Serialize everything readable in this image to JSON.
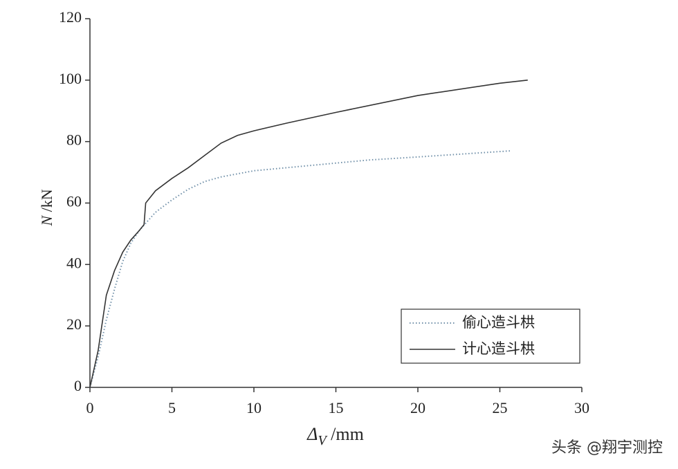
{
  "chart_data": {
    "type": "line",
    "y_label": [
      "N",
      " /kN"
    ],
    "x_label": [
      "Δ",
      "V",
      " /mm"
    ],
    "xlim": [
      0,
      30
    ],
    "xticks": [
      0,
      5,
      10,
      15,
      20,
      25,
      30
    ],
    "ylim": [
      0,
      120
    ],
    "yticks": [
      0,
      20,
      40,
      60,
      80,
      100,
      120
    ],
    "legend": "lower right",
    "series": [
      {
        "name": "偷心造斗栱",
        "color": "#6f8fa8",
        "style": "dotted",
        "x": [
          0,
          0.5,
          1,
          1.5,
          2,
          2.5,
          3,
          3.5,
          4,
          5,
          6,
          7,
          8,
          10,
          12,
          15,
          17,
          20,
          25.7
        ],
        "values": [
          0,
          10,
          22,
          32,
          41,
          47,
          51,
          54,
          57,
          61,
          64.5,
          67,
          68.5,
          70.5,
          71.5,
          73,
          74,
          75,
          77
        ]
      },
      {
        "name": "计心造斗栱",
        "color": "#333333",
        "style": "solid",
        "x": [
          0,
          0.5,
          1,
          1.5,
          2,
          2.5,
          3,
          3.3,
          3.4,
          4,
          5,
          6,
          7,
          8,
          9,
          10,
          12,
          15,
          20,
          25,
          26.7
        ],
        "values": [
          0,
          12,
          30,
          38,
          44,
          48,
          51,
          53,
          60,
          64,
          68,
          71.5,
          75.5,
          79.5,
          82,
          83.5,
          86,
          89.5,
          95,
          99,
          100
        ]
      }
    ]
  },
  "watermark": "头条 @翔宇测控"
}
